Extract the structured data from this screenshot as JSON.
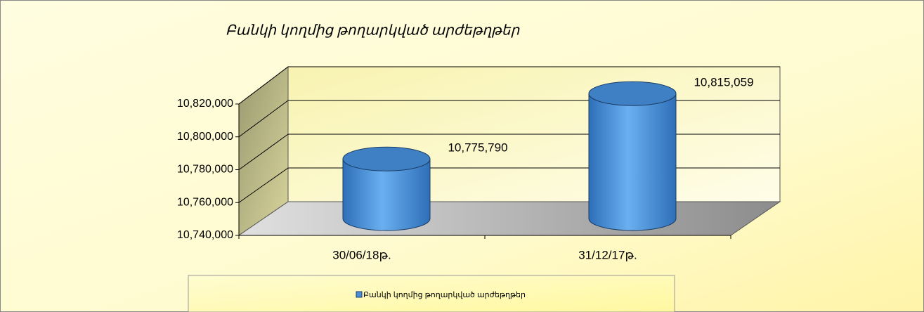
{
  "chart_data": {
    "type": "cylinder",
    "title": "Բանկի կողմից թողարկված արժեթղթեր",
    "categories": [
      "30/06/18թ.",
      "31/12/17թ."
    ],
    "series": [
      {
        "name": "Բանկի կողմից թողարկված արժեթղթեր",
        "color": "#4a90d9",
        "values": [
          10775790,
          10815059
        ],
        "value_labels": [
          "10,775,790",
          "10,815,059"
        ]
      }
    ],
    "ylim": [
      10740000,
      10820000
    ],
    "yticks": [
      {
        "value": 10740000,
        "label": "10,740,000"
      },
      {
        "value": 10760000,
        "label": "10,760,000"
      },
      {
        "value": 10780000,
        "label": "10,780,000"
      },
      {
        "value": 10800000,
        "label": "10,800,000"
      },
      {
        "value": 10820000,
        "label": "10,820,000"
      }
    ],
    "grid": true,
    "legend": "bottom"
  }
}
